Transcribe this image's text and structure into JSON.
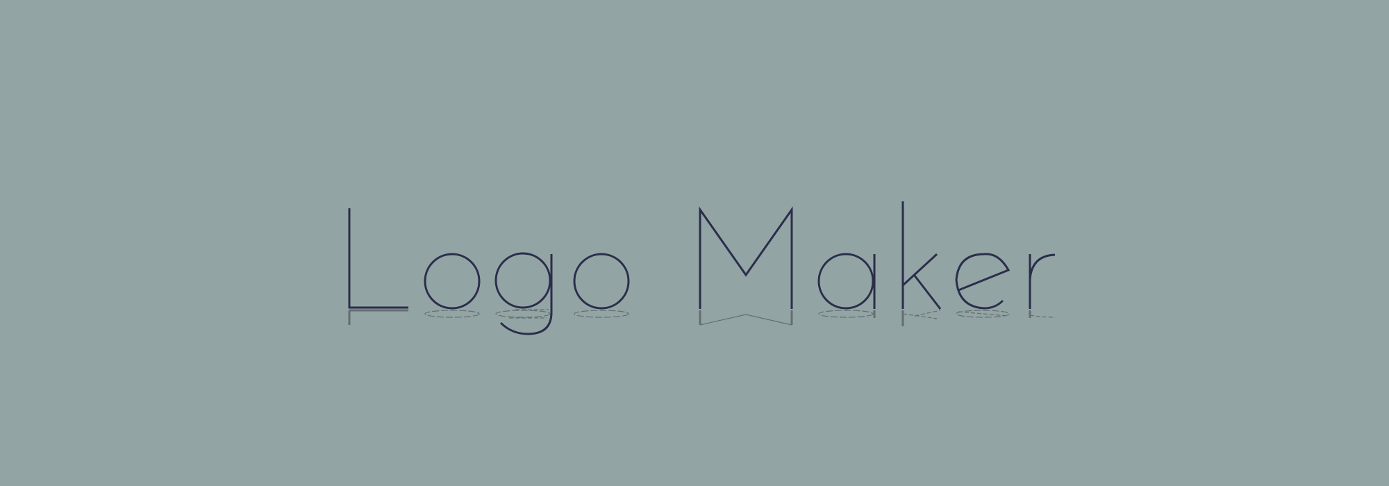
{
  "logo": {
    "text": "Logo Maker",
    "stroke_color": "#2b2d4a",
    "reflection_color": "#5c6566",
    "background_color": "#92a4a4"
  }
}
